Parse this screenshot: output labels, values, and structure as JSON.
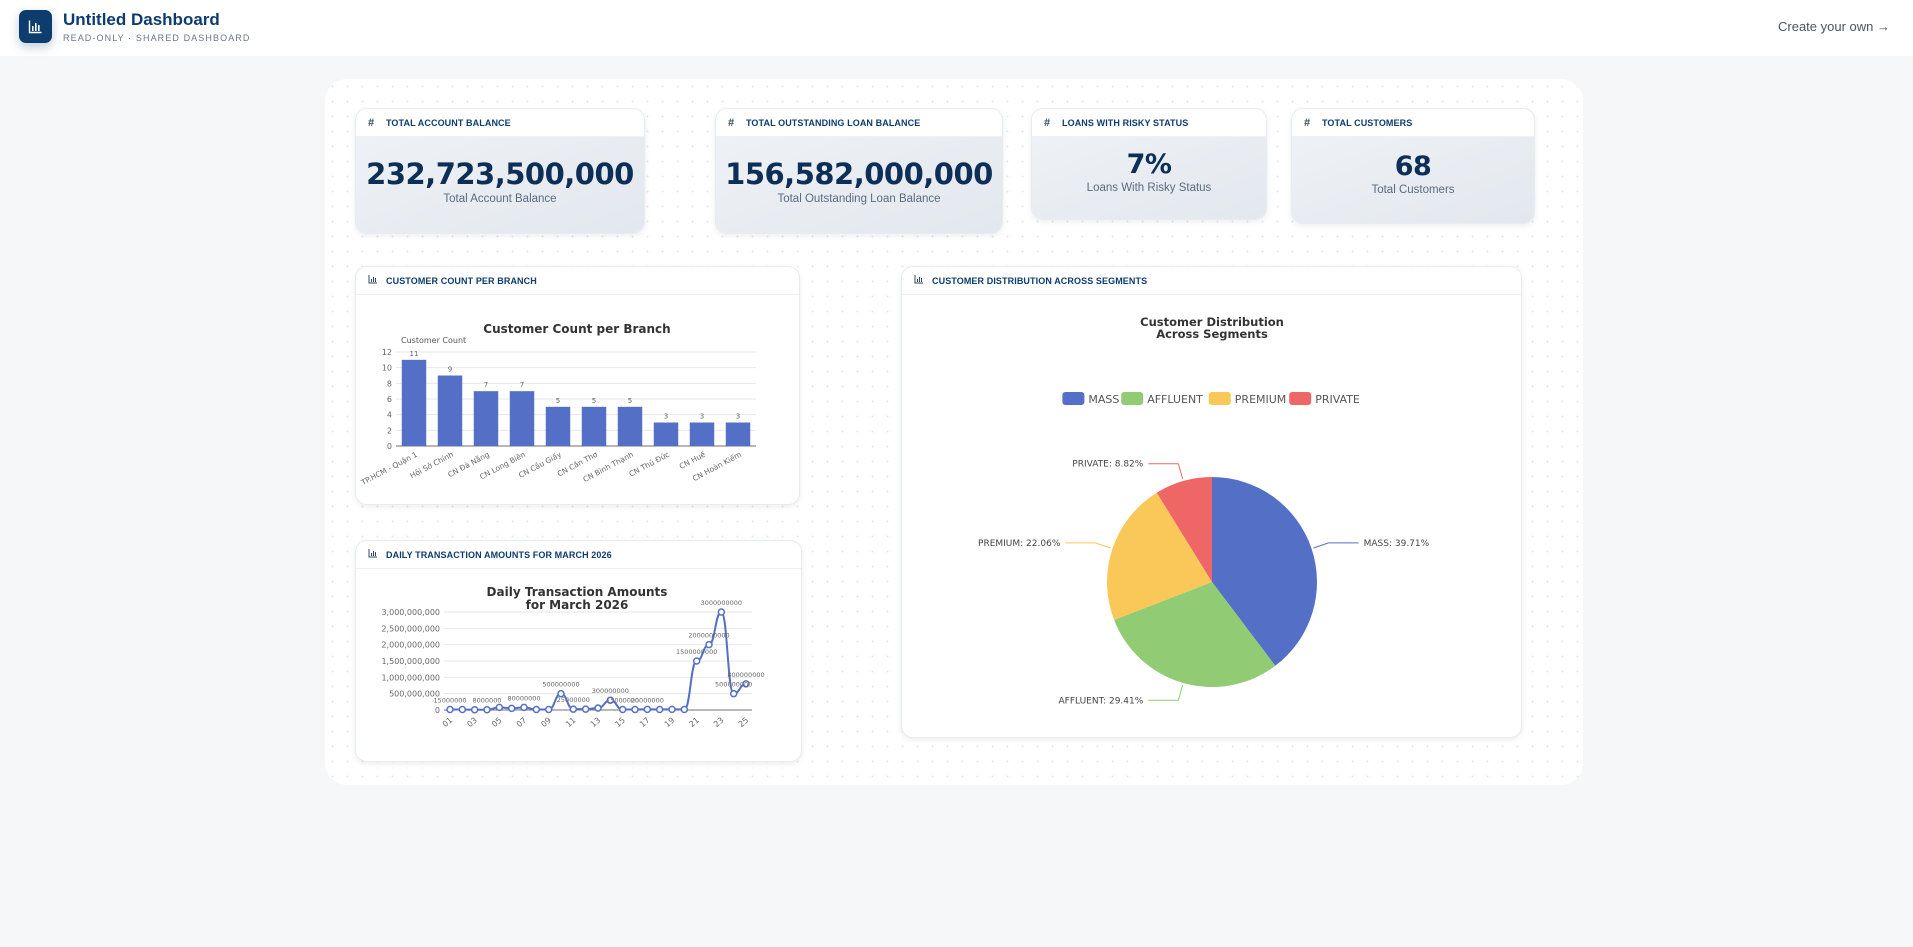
{
  "header": {
    "title": "Untitled Dashboard",
    "subtitle": "READ-ONLY · SHARED DASHBOARD",
    "create_link": "Create your own →",
    "logo_icon": "bar-chart-icon"
  },
  "kpis": [
    {
      "header": "TOTAL ACCOUNT BALANCE",
      "icon": "hash-icon",
      "value": "232,723,500,000",
      "label": "Total Account Balance"
    },
    {
      "header": "TOTAL OUTSTANDING LOAN BALANCE",
      "icon": "hash-icon",
      "value": "156,582,000,000",
      "label": "Total Outstanding Loan Balance"
    },
    {
      "header": "LOANS WITH RISKY STATUS",
      "icon": "hash-icon",
      "value": "7%",
      "label": "Loans With Risky Status"
    },
    {
      "header": "TOTAL CUSTOMERS",
      "icon": "hash-icon",
      "value": "68",
      "label": "Total Customers"
    }
  ],
  "cards": {
    "bar": {
      "header": "CUSTOMER COUNT PER BRANCH",
      "icon": "bar-chart-icon"
    },
    "line": {
      "header": "DAILY TRANSACTION AMOUNTS FOR MARCH 2026",
      "icon": "bar-chart-icon"
    },
    "pie": {
      "header": "CUSTOMER DISTRIBUTION ACROSS SEGMENTS",
      "icon": "bar-chart-icon"
    }
  },
  "chart_data": [
    {
      "type": "bar",
      "title": "Customer Count per Branch",
      "ylabel": "Customer Count",
      "xlabel": "",
      "categories": [
        "TP.HCM - Quận 1",
        "Hội Sở Chính",
        "CN Đà Nẵng",
        "CN Long Biên",
        "CN Cầu Giấy",
        "CN Cần Thơ",
        "CN Bình Thạnh",
        "CN Thủ Đức",
        "CN Huế",
        "CN Hoàn Kiếm"
      ],
      "values": [
        11,
        9,
        7,
        7,
        5,
        5,
        5,
        3,
        3,
        3
      ],
      "ylim": [
        0,
        12
      ],
      "yticks": [
        0,
        2,
        4,
        6,
        8,
        10,
        12
      ],
      "grid": true,
      "color": "#5470c6"
    },
    {
      "type": "line",
      "title": "Daily Transaction Amounts\nfor March 2026",
      "xlabel": "",
      "ylabel": "",
      "x": [
        "01",
        "02",
        "03",
        "04",
        "05",
        "06",
        "07",
        "08",
        "09",
        "10",
        "11",
        "12",
        "13",
        "14",
        "15",
        "16",
        "17",
        "18",
        "19",
        "20",
        "21",
        "22",
        "23",
        "24",
        "25"
      ],
      "xtick_labels": [
        "01",
        "03",
        "05",
        "07",
        "09",
        "11",
        "13",
        "15",
        "17",
        "19",
        "21",
        "23",
        "25"
      ],
      "values": [
        15000000,
        15000000,
        8000000,
        8000000,
        80000000,
        50000000,
        80000000,
        15000000,
        15000000,
        500000000,
        25000000,
        25000000,
        60000000,
        300000000,
        15000000,
        15000000,
        20000000,
        15000000,
        20000000,
        15000000,
        1500000000,
        2000000000,
        3000000000,
        500000000,
        800000000
      ],
      "point_labels": [
        {
          "x": "01",
          "text": "15000000"
        },
        {
          "x": "04",
          "text": "8000000"
        },
        {
          "x": "07",
          "text": "80000000"
        },
        {
          "x": "10",
          "text": "500000000"
        },
        {
          "x": "11",
          "text": "25000000"
        },
        {
          "x": "14",
          "text": "300000000"
        },
        {
          "x": "15",
          "text": "15000000"
        },
        {
          "x": "17",
          "text": "20000000"
        },
        {
          "x": "21",
          "text": "1500000000"
        },
        {
          "x": "22",
          "text": "2000000000"
        },
        {
          "x": "23",
          "text": "3000000000"
        },
        {
          "x": "24",
          "text": "500000000"
        },
        {
          "x": "25",
          "text": "800000000"
        }
      ],
      "ylim": [
        0,
        3000000000
      ],
      "yticks": [
        "0",
        "500,000,000",
        "1,000,000,000",
        "1,500,000,000",
        "2,000,000,000",
        "2,500,000,000",
        "3,000,000,000"
      ],
      "grid": true,
      "color": "#5470c6"
    },
    {
      "type": "pie",
      "title": "Customer Distribution\nAcross Segments",
      "legend_position": "top",
      "slices": [
        {
          "label": "MASS",
          "percent": 39.71,
          "color": "#5470c6"
        },
        {
          "label": "AFFLUENT",
          "percent": 29.41,
          "color": "#91cc75"
        },
        {
          "label": "PREMIUM",
          "percent": 22.06,
          "color": "#fac858"
        },
        {
          "label": "PRIVATE",
          "percent": 8.82,
          "color": "#ee6666"
        }
      ]
    }
  ]
}
